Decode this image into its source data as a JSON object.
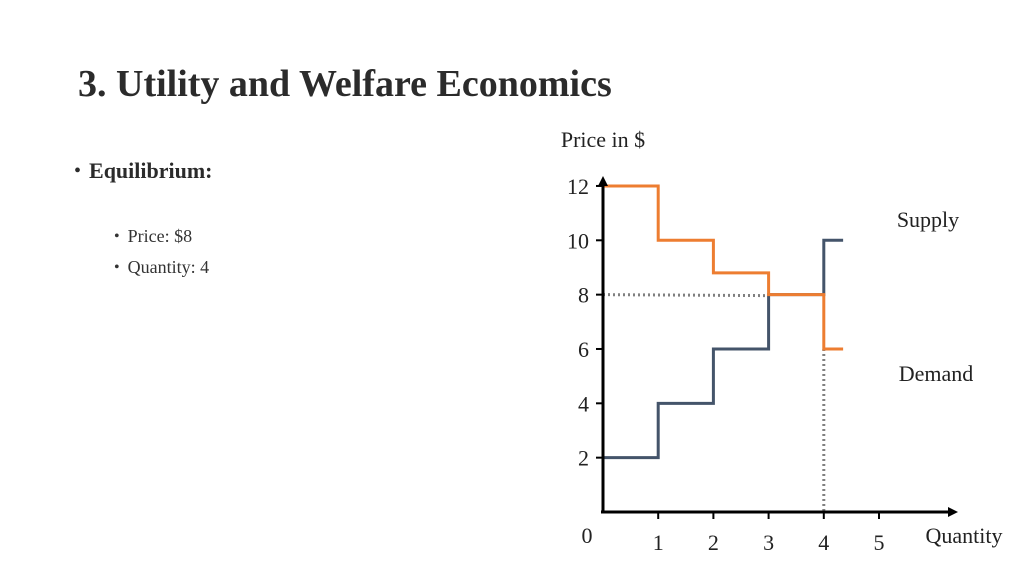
{
  "slide": {
    "title": "3. Utility and Welfare Economics",
    "bullet": "Equilibrium:",
    "sub_bullets": [
      "Price: $8",
      "Quantity: 4"
    ]
  },
  "colors": {
    "supply": "#44546a",
    "demand": "#ed7d31",
    "guide": "#808080",
    "axis": "#000000"
  },
  "chart_data": {
    "type": "line",
    "ylabel": "Price in $",
    "xlabel": "Quantity",
    "origin_label": "0",
    "x_ticks": [
      1,
      2,
      3,
      4,
      5
    ],
    "y_ticks": [
      2,
      4,
      6,
      8,
      10,
      12
    ],
    "xlim": [
      0,
      5.8
    ],
    "ylim": [
      0,
      13.5
    ],
    "grid": false,
    "series": [
      {
        "name": "Supply",
        "x": [
          0,
          1,
          1,
          2,
          2,
          3,
          3,
          4,
          4,
          4.35
        ],
        "y": [
          2,
          2,
          4,
          4,
          6,
          6,
          8,
          8,
          10,
          10
        ]
      },
      {
        "name": "Demand",
        "x": [
          0,
          1,
          1,
          2,
          2,
          3,
          3,
          4,
          4,
          4.35
        ],
        "y": [
          12,
          12,
          10,
          10,
          8.8,
          8.8,
          8,
          8,
          6,
          6
        ]
      }
    ],
    "equilibrium": {
      "price": 8,
      "quantity": 4
    }
  }
}
